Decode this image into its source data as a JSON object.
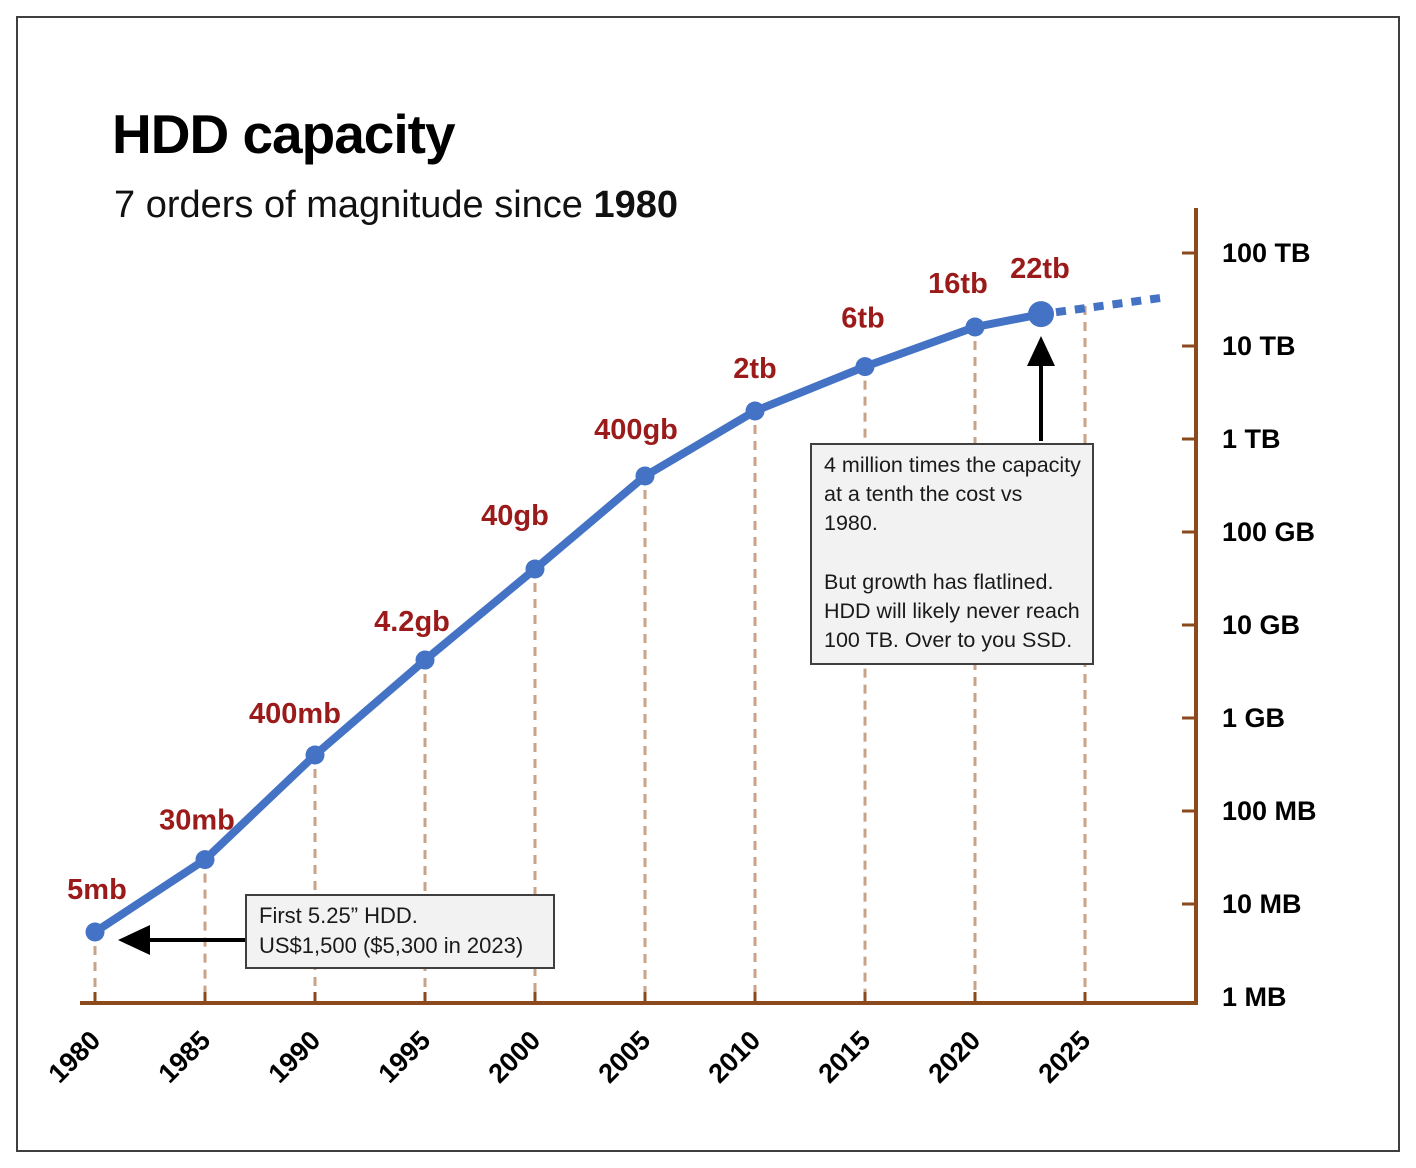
{
  "page": {
    "title": "HDD capacity",
    "subtitle_prefix": "7 orders of magnitude since ",
    "subtitle_bold": "1980"
  },
  "colors": {
    "series_blue": "#4472C4",
    "point_label_red": "#9B1B1B",
    "axis_brown": "#8B4A1C",
    "gridline_tan": "#C9A287",
    "annotation_bg": "#F2F2F2",
    "annotation_border": "#3F3F3F",
    "arrow_black": "#000000",
    "text_black": "#000000"
  },
  "chart_data": {
    "type": "line",
    "title": "HDD capacity",
    "subtitle": "7 orders of magnitude since 1980",
    "x_axis": {
      "ticks": [
        "1980",
        "1985",
        "1990",
        "1995",
        "2000",
        "2005",
        "2010",
        "2015",
        "2020",
        "2025"
      ],
      "range_years": [
        1980,
        2030
      ],
      "grid": "dashed droplines at data points"
    },
    "y_axis": {
      "scale": "log10",
      "unit": "MB",
      "ticks": [
        {
          "label": "100 TB",
          "mb": 100000000
        },
        {
          "label": "10 TB",
          "mb": 10000000
        },
        {
          "label": "1 TB",
          "mb": 1000000
        },
        {
          "label": "100 GB",
          "mb": 100000
        },
        {
          "label": "10 GB",
          "mb": 10000
        },
        {
          "label": "1 GB",
          "mb": 1000
        },
        {
          "label": "100 MB",
          "mb": 100
        },
        {
          "label": "10 MB",
          "mb": 10
        },
        {
          "label": "1 MB",
          "mb": 1
        }
      ],
      "range_mb": [
        1,
        100000000
      ]
    },
    "series": [
      {
        "name": "HDD capacity",
        "points": [
          {
            "year": 1980,
            "label": "5mb",
            "mb": 5
          },
          {
            "year": 1985,
            "label": "30mb",
            "mb": 30
          },
          {
            "year": 1990,
            "label": "400mb",
            "mb": 400
          },
          {
            "year": 1995,
            "label": "4.2gb",
            "mb": 4200
          },
          {
            "year": 2000,
            "label": "40gb",
            "mb": 40000
          },
          {
            "year": 2005,
            "label": "400gb",
            "mb": 400000
          },
          {
            "year": 2010,
            "label": "2tb",
            "mb": 2000000
          },
          {
            "year": 2015,
            "label": "6tb",
            "mb": 6000000
          },
          {
            "year": 2020,
            "label": "16tb",
            "mb": 16000000
          },
          {
            "year": 2023,
            "label": "22tb",
            "mb": 22000000,
            "emphasized": true
          }
        ]
      }
    ],
    "projection": {
      "style": "dotted",
      "end_year": 2028.5,
      "end_mb": 33000000
    },
    "extra_dropline_year": 2025,
    "legend": "none"
  },
  "annotations": {
    "first_hdd": {
      "line1": "First 5.25” HDD.",
      "line2": "US$1,500 ($5,300 in 2023)"
    },
    "growth": {
      "p1": "4 million times the capacity at a tenth the cost vs 1980.",
      "p2": "But growth has flatlined. HDD will likely never reach 100 TB. Over to you SSD."
    }
  }
}
